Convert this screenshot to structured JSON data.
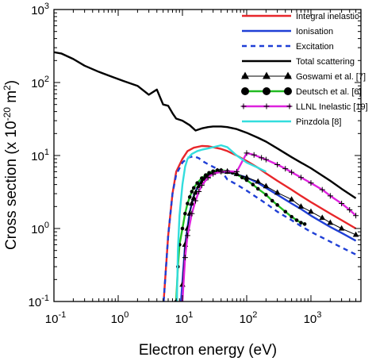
{
  "chart_data": {
    "type": "line",
    "xlabel": "Electron energy (eV)",
    "ylabel": "Cross section (x 10-20 m2)",
    "xscale": "log",
    "yscale": "log",
    "xlim": [
      0.1,
      6000
    ],
    "ylim": [
      0.1,
      1000
    ],
    "grid": false,
    "legend_position": "top-right",
    "x_ticks": [
      {
        "value": 0.1,
        "base": "10",
        "exp": "-1"
      },
      {
        "value": 1,
        "base": "10",
        "exp": "0"
      },
      {
        "value": 10,
        "base": "10",
        "exp": "1"
      },
      {
        "value": 100,
        "base": "10",
        "exp": "2"
      },
      {
        "value": 1000,
        "base": "10",
        "exp": "3"
      }
    ],
    "y_ticks": [
      {
        "value": 0.1,
        "base": "10",
        "exp": "-1"
      },
      {
        "value": 1,
        "base": "10",
        "exp": "0"
      },
      {
        "value": 10,
        "base": "10",
        "exp": "1"
      },
      {
        "value": 100,
        "base": "10",
        "exp": "2"
      },
      {
        "value": 1000,
        "base": "10",
        "exp": "3"
      }
    ],
    "series": [
      {
        "name": "Integral inelastic",
        "color": "#e8262a",
        "dash": "solid",
        "marker": "none",
        "points": [
          [
            5.1,
            0.1
          ],
          [
            6,
            0.8
          ],
          [
            7,
            3
          ],
          [
            8,
            6
          ],
          [
            10,
            9
          ],
          [
            12,
            11.5
          ],
          [
            15,
            12.8
          ],
          [
            20,
            13.5
          ],
          [
            25,
            13.4
          ],
          [
            30,
            13
          ],
          [
            40,
            12.3
          ],
          [
            50,
            11.5
          ],
          [
            70,
            10
          ],
          [
            100,
            8.4
          ],
          [
            150,
            6.8
          ],
          [
            200,
            5.7
          ],
          [
            300,
            4.5
          ],
          [
            500,
            3.4
          ],
          [
            700,
            2.8
          ],
          [
            1000,
            2.3
          ],
          [
            2000,
            1.6
          ],
          [
            3000,
            1.3
          ],
          [
            5000,
            1.0
          ]
        ]
      },
      {
        "name": "Ionisation",
        "color": "#1f3fd6",
        "dash": "solid",
        "marker": "none",
        "points": [
          [
            9.5,
            0.1
          ],
          [
            11,
            0.6
          ],
          [
            13,
            1.7
          ],
          [
            15,
            2.8
          ],
          [
            18,
            4.0
          ],
          [
            20,
            4.6
          ],
          [
            25,
            5.4
          ],
          [
            30,
            5.8
          ],
          [
            40,
            6.0
          ],
          [
            50,
            5.9
          ],
          [
            70,
            5.5
          ],
          [
            100,
            5.0
          ],
          [
            150,
            4.2
          ],
          [
            200,
            3.6
          ],
          [
            300,
            2.9
          ],
          [
            500,
            2.2
          ],
          [
            700,
            1.85
          ],
          [
            1000,
            1.5
          ],
          [
            2000,
            1.05
          ],
          [
            3000,
            0.87
          ],
          [
            5000,
            0.68
          ]
        ]
      },
      {
        "name": "Excitation",
        "color": "#1f3fd6",
        "dash": "6,5",
        "marker": "none",
        "points": [
          [
            5.1,
            0.1
          ],
          [
            6,
            0.8
          ],
          [
            7,
            3
          ],
          [
            8,
            5.5
          ],
          [
            10,
            8
          ],
          [
            12,
            9.3
          ],
          [
            15,
            9.8
          ],
          [
            18,
            9.2
          ],
          [
            20,
            8.5
          ],
          [
            25,
            7.6
          ],
          [
            30,
            7.0
          ],
          [
            40,
            6.2
          ],
          [
            50,
            4.7
          ],
          [
            70,
            4.0
          ],
          [
            100,
            3.3
          ],
          [
            150,
            2.6
          ],
          [
            200,
            2.2
          ],
          [
            300,
            1.7
          ],
          [
            500,
            1.3
          ],
          [
            700,
            1.08
          ],
          [
            1000,
            0.9
          ],
          [
            2000,
            0.66
          ],
          [
            3000,
            0.55
          ],
          [
            5000,
            0.44
          ]
        ]
      },
      {
        "name": "Total scattering",
        "color": "#000000",
        "dash": "solid",
        "marker": "none",
        "points": [
          [
            0.1,
            260
          ],
          [
            0.13,
            250
          ],
          [
            0.2,
            210
          ],
          [
            0.3,
            170
          ],
          [
            0.5,
            140
          ],
          [
            0.8,
            120
          ],
          [
            1.2,
            105
          ],
          [
            2,
            90
          ],
          [
            3,
            68
          ],
          [
            4,
            80
          ],
          [
            5,
            50
          ],
          [
            6,
            48
          ],
          [
            7,
            38
          ],
          [
            8,
            32
          ],
          [
            10,
            30
          ],
          [
            13,
            26
          ],
          [
            16,
            22
          ],
          [
            20,
            23.5
          ],
          [
            25,
            24.5
          ],
          [
            30,
            25
          ],
          [
            40,
            25
          ],
          [
            50,
            24.5
          ],
          [
            70,
            23
          ],
          [
            100,
            20.5
          ],
          [
            150,
            17.5
          ],
          [
            200,
            15.5
          ],
          [
            300,
            12.5
          ],
          [
            500,
            9.5
          ],
          [
            700,
            8
          ],
          [
            1000,
            6.7
          ],
          [
            2000,
            4.5
          ],
          [
            3000,
            3.5
          ],
          [
            5000,
            2.6
          ]
        ]
      },
      {
        "name": "Goswami et al. [7]",
        "color": "#000000",
        "dash": "solid",
        "marker": "triangle",
        "line_width": 1,
        "points": [
          [
            10,
            0.17
          ],
          [
            11,
            0.6
          ],
          [
            12,
            1.0
          ],
          [
            13,
            1.6
          ],
          [
            14,
            2.2
          ],
          [
            15,
            2.6
          ],
          [
            16,
            3.1
          ],
          [
            18,
            3.8
          ],
          [
            20,
            4.3
          ],
          [
            22,
            4.8
          ],
          [
            25,
            5.2
          ],
          [
            30,
            5.8
          ],
          [
            35,
            6.1
          ],
          [
            40,
            6.1
          ],
          [
            50,
            6.0
          ],
          [
            70,
            5.6
          ],
          [
            100,
            5.0
          ],
          [
            150,
            4.4
          ],
          [
            200,
            3.8
          ],
          [
            300,
            3.1
          ],
          [
            500,
            2.5
          ],
          [
            700,
            2.0
          ],
          [
            1000,
            1.7
          ],
          [
            1500,
            1.4
          ],
          [
            2000,
            1.2
          ],
          [
            3000,
            1.0
          ],
          [
            5000,
            0.82
          ]
        ]
      },
      {
        "name": "Deutsch et al. [6]",
        "color": "#22bb22",
        "dash": "solid",
        "marker": "circle",
        "points": [
          [
            8,
            0.1
          ],
          [
            8.5,
            0.3
          ],
          [
            9,
            0.6
          ],
          [
            10,
            1.0
          ],
          [
            11,
            1.6
          ],
          [
            12,
            2.2
          ],
          [
            13,
            2.7
          ],
          [
            14,
            3.2
          ],
          [
            15,
            3.6
          ],
          [
            17,
            4.2
          ],
          [
            20,
            4.9
          ],
          [
            23,
            5.4
          ],
          [
            26,
            5.8
          ],
          [
            30,
            6.1
          ],
          [
            35,
            6.3
          ],
          [
            40,
            6.3
          ],
          [
            50,
            6.1
          ],
          [
            60,
            5.8
          ],
          [
            70,
            5.5
          ],
          [
            85,
            5.0
          ],
          [
            100,
            4.6
          ],
          [
            125,
            4.0
          ],
          [
            150,
            3.5
          ],
          [
            200,
            2.9
          ],
          [
            250,
            2.4
          ],
          [
            300,
            2.1
          ],
          [
            400,
            1.7
          ],
          [
            500,
            1.45
          ],
          [
            600,
            1.3
          ],
          [
            700,
            1.2
          ],
          [
            800,
            1.15
          ]
        ]
      },
      {
        "name": "LLNL Inelastic [19]",
        "color": "#dd22dd",
        "dash": "solid",
        "marker": "plus",
        "points": [
          [
            10,
            0.1
          ],
          [
            11,
            0.4
          ],
          [
            12,
            0.8
          ],
          [
            14,
            1.6
          ],
          [
            16,
            2.4
          ],
          [
            18,
            3.2
          ],
          [
            20,
            3.9
          ],
          [
            25,
            5.0
          ],
          [
            30,
            5.6
          ],
          [
            40,
            6.0
          ],
          [
            50,
            6.1
          ],
          [
            70,
            6.0
          ],
          [
            100,
            10.8
          ],
          [
            130,
            10.2
          ],
          [
            170,
            9.3
          ],
          [
            200,
            8.8
          ],
          [
            300,
            7.5
          ],
          [
            400,
            6.6
          ],
          [
            500,
            5.9
          ],
          [
            700,
            5.0
          ],
          [
            1000,
            4.2
          ],
          [
            1500,
            3.4
          ],
          [
            2000,
            2.8
          ],
          [
            3000,
            2.2
          ],
          [
            4000,
            1.8
          ],
          [
            5000,
            1.5
          ]
        ]
      },
      {
        "name": "Pinzdola [8]",
        "color": "#33dddd",
        "dash": "solid",
        "marker": "none",
        "points": [
          [
            8.2,
            0.1
          ],
          [
            8.5,
            0.5
          ],
          [
            9,
            1.5
          ],
          [
            10,
            4
          ],
          [
            11,
            7
          ],
          [
            12,
            9
          ],
          [
            14,
            10.5
          ],
          [
            17,
            11.5
          ],
          [
            20,
            12
          ],
          [
            25,
            12.5
          ],
          [
            30,
            13
          ],
          [
            40,
            13.8
          ],
          [
            50,
            13
          ],
          [
            70,
            10
          ],
          [
            100,
            8
          ],
          [
            150,
            6.8
          ],
          [
            200,
            6.0
          ]
        ]
      }
    ]
  }
}
